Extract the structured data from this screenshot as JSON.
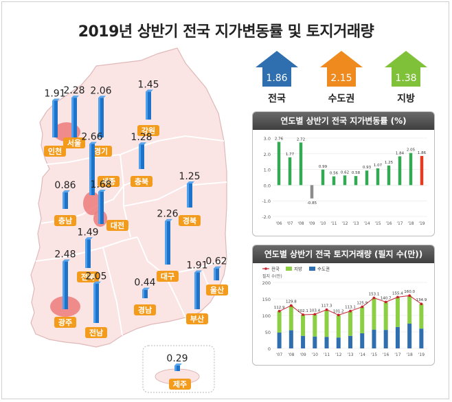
{
  "title": "2019년 상반기 전국 지가변동률 및 토지거래량",
  "summary": [
    {
      "label": "전국",
      "value": "1.86",
      "color": "#2f6fb0"
    },
    {
      "label": "수도권",
      "value": "2.15",
      "color": "#ee8a1e"
    },
    {
      "label": "지방",
      "value": "1.38",
      "color": "#7fc23a"
    }
  ],
  "map": {
    "regions": [
      {
        "name": "서울",
        "value": "2.28",
        "highlight": true
      },
      {
        "name": "인천",
        "value": "1.91",
        "highlight": false
      },
      {
        "name": "경기",
        "value": "2.06",
        "highlight": false
      },
      {
        "name": "강원",
        "value": "1.45",
        "highlight": false
      },
      {
        "name": "충북",
        "value": "1.28",
        "highlight": false
      },
      {
        "name": "세종",
        "value": "2.66",
        "highlight": true
      },
      {
        "name": "충남",
        "value": "0.86",
        "highlight": false
      },
      {
        "name": "대전",
        "value": "1.68",
        "highlight": true
      },
      {
        "name": "경북",
        "value": "1.25",
        "highlight": false
      },
      {
        "name": "전북",
        "value": "1.49",
        "highlight": false
      },
      {
        "name": "대구",
        "value": "2.26",
        "highlight": false
      },
      {
        "name": "울산",
        "value": "0.62",
        "highlight": false
      },
      {
        "name": "광주",
        "value": "2.48",
        "highlight": true
      },
      {
        "name": "전남",
        "value": "2.05",
        "highlight": false
      },
      {
        "name": "경남",
        "value": "0.44",
        "highlight": false
      },
      {
        "name": "부산",
        "value": "1.91",
        "highlight": false
      },
      {
        "name": "제주",
        "value": "0.29",
        "highlight": false
      }
    ]
  },
  "chart_data": [
    {
      "type": "bar",
      "title": "연도별 상반기 전국 지가변동률 (%)",
      "categories": [
        "'06",
        "'07",
        "'08",
        "'09",
        "'10",
        "'11",
        "'12",
        "'13",
        "'14",
        "'15",
        "'16",
        "'17",
        "'18",
        "'19"
      ],
      "values": [
        2.76,
        1.77,
        2.72,
        -0.85,
        0.99,
        0.56,
        0.62,
        0.58,
        0.93,
        1.07,
        1.25,
        1.84,
        2.05,
        1.86
      ],
      "value_labels": [
        "2.76",
        "1.77",
        "2.72",
        "-0.85",
        "0.99",
        "0.56",
        "0.62",
        "0.58",
        "0.93",
        "1.07",
        "1.25",
        "1.84",
        "2.05",
        "1.86"
      ],
      "yticks": [
        "3.0",
        "2.0",
        "1.0",
        "0.0",
        "-1.0",
        "-2.0"
      ],
      "ylim": [
        -2.0,
        3.0
      ],
      "colors": {
        "default": "#34a853",
        "negative": "#8c8c8c",
        "highlight": "#e53a1f"
      }
    },
    {
      "type": "bar",
      "title": "연도별 상반기 전국 토지거래량 (필지 수(만))",
      "ylabel": "필지 수(만)",
      "categories": [
        "'07",
        "'08",
        "'09",
        "'10",
        "'11",
        "'12",
        "'13",
        "'14",
        "'15",
        "'16",
        "'17",
        "'18",
        "'19"
      ],
      "series": [
        {
          "name": "전국",
          "values": [
            112.9,
            129.8,
            102.1,
            103.4,
            117.3,
            101.2,
            113.1,
            125.9,
            153.1,
            140.7,
            155.4,
            160.0,
            134.9
          ],
          "labels": [
            "112.9",
            "129.8",
            "102.1",
            "103.4",
            "117.3",
            "101.2",
            "113.1",
            "125.9",
            "153.1",
            "140.7",
            "155.4",
            "160.0",
            "134.9"
          ]
        },
        {
          "name": "지방",
          "values": [
            65,
            75,
            64,
            67,
            82,
            68,
            75,
            80,
            96,
            85,
            90,
            85,
            75
          ]
        },
        {
          "name": "수도권",
          "values": [
            48,
            55,
            38,
            36,
            35,
            33,
            38,
            46,
            57,
            56,
            65,
            75,
            60
          ]
        }
      ],
      "yticks": [
        "200",
        "150",
        "100",
        "50",
        "0"
      ],
      "ylim": [
        0,
        200
      ],
      "colors": {
        "전국": "#c8202f",
        "지방": "#8ccf45",
        "수도권": "#2f6fb0"
      }
    }
  ]
}
